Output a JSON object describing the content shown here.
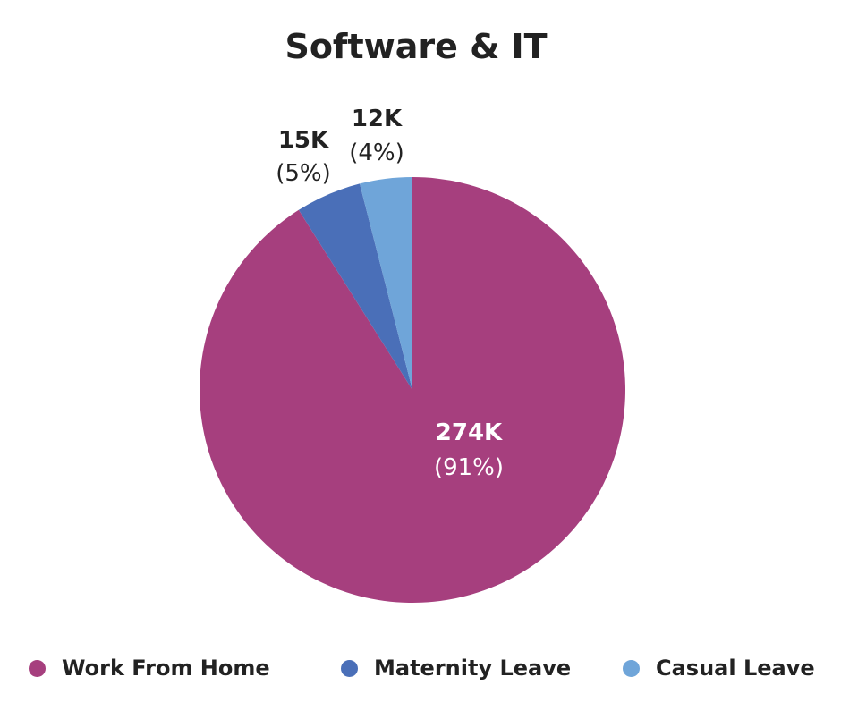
{
  "chart_data": {
    "type": "pie",
    "title": "Software & IT",
    "start_angle_deg": 0,
    "direction": "clockwise",
    "slices": [
      {
        "label": "Work From Home",
        "value": 274,
        "value_label": "274K",
        "percent_label": "(91%)",
        "color": "#a63f7e"
      },
      {
        "label": "Maternity Leave",
        "value": 15,
        "value_label": "15K",
        "percent_label": "(5%)",
        "color": "#4a6fb8"
      },
      {
        "label": "Casual Leave",
        "value": 12,
        "value_label": "12K",
        "percent_label": "(4%)",
        "color": "#6fa5d9"
      }
    ],
    "legend_position": "bottom"
  }
}
